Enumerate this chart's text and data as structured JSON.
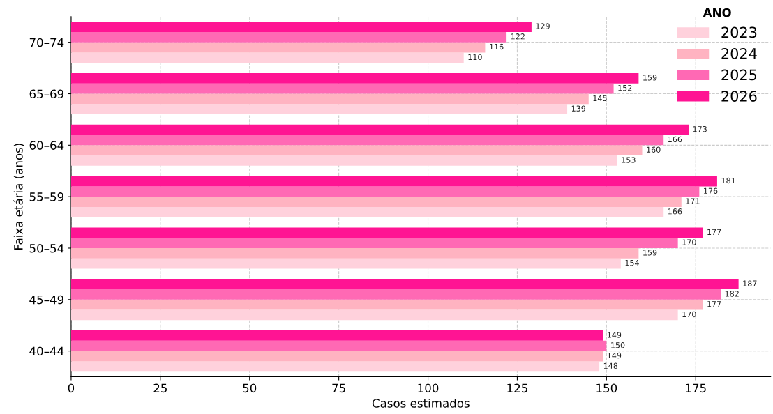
{
  "chart_data": {
    "type": "bar",
    "orientation": "horizontal",
    "xlabel": "Casos estimados",
    "ylabel": "Faixa etária (anos)",
    "legend_title": "ANO",
    "categories": [
      "70–74",
      "65–69",
      "60–64",
      "55–59",
      "50–54",
      "45–49",
      "40–44"
    ],
    "series": [
      {
        "name": "2023",
        "color": "#ffd1dc",
        "values": [
          110,
          139,
          153,
          166,
          154,
          170,
          148
        ]
      },
      {
        "name": "2024",
        "color": "#ffb3c1",
        "values": [
          116,
          145,
          160,
          171,
          159,
          177,
          149
        ]
      },
      {
        "name": "2025",
        "color": "#ff69b4",
        "values": [
          122,
          152,
          166,
          176,
          170,
          182,
          150
        ]
      },
      {
        "name": "2026",
        "color": "#ff1493",
        "values": [
          129,
          159,
          173,
          181,
          177,
          187,
          149
        ]
      }
    ],
    "xlim": [
      0,
      196
    ],
    "xticks": [
      0,
      25,
      50,
      75,
      100,
      125,
      150,
      175
    ],
    "grid": true,
    "legend": "top right",
    "data_labels": true
  }
}
